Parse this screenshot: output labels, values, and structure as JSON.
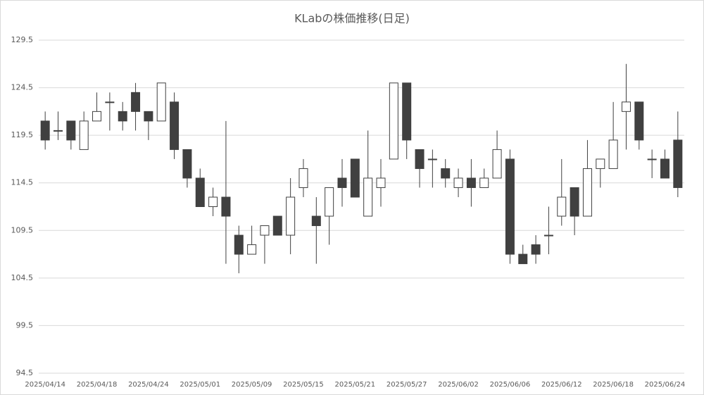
{
  "chart_data": {
    "type": "candlestick",
    "title": "KLabの株価推移(日足)",
    "categories": [
      "2025/04/14",
      null,
      null,
      null,
      "2025/04/18",
      null,
      null,
      null,
      "2025/04/24",
      null,
      null,
      null,
      "2025/05/01",
      null,
      null,
      null,
      "2025/05/09",
      null,
      null,
      null,
      "2025/05/15",
      null,
      null,
      null,
      "2025/05/21",
      null,
      null,
      null,
      "2025/05/27",
      null,
      null,
      null,
      "2025/06/02",
      null,
      null,
      null,
      "2025/06/06",
      null,
      null,
      null,
      "2025/06/12",
      null,
      null,
      null,
      "2025/06/18",
      null,
      null,
      null,
      "2025/06/24",
      null
    ],
    "open": [
      121,
      120,
      121,
      118,
      121,
      123,
      122,
      124,
      122,
      121,
      123,
      118,
      115,
      112,
      113,
      109,
      107,
      109,
      111,
      109,
      114,
      111,
      111,
      115,
      117,
      111,
      114,
      117,
      125,
      118,
      117,
      116,
      114,
      115,
      114,
      115,
      117,
      107,
      108,
      109,
      111,
      114,
      111,
      116,
      116,
      122,
      123,
      117,
      117,
      119
    ],
    "high": [
      122,
      122,
      121,
      122,
      124,
      124,
      123,
      125,
      122,
      125,
      124,
      118,
      116,
      114,
      121,
      110,
      110,
      110,
      111,
      115,
      117,
      113,
      114,
      117,
      117,
      120,
      117,
      125,
      125,
      118,
      118,
      117,
      116,
      117,
      116,
      120,
      118,
      108,
      109,
      112,
      117,
      114,
      119,
      117,
      123,
      127,
      123,
      118,
      118,
      122
    ],
    "low": [
      118,
      119,
      118,
      118,
      121,
      120,
      120,
      120,
      119,
      121,
      117,
      114,
      112,
      111,
      106,
      105,
      107,
      106,
      109,
      107,
      113,
      106,
      108,
      112,
      113,
      111,
      112,
      117,
      117,
      114,
      114,
      114,
      113,
      112,
      114,
      115,
      106,
      106,
      106,
      107,
      110,
      109,
      111,
      114,
      116,
      118,
      118,
      115,
      115,
      113
    ],
    "close": [
      119,
      120,
      119,
      121,
      122,
      123,
      121,
      122,
      121,
      125,
      118,
      115,
      112,
      113,
      111,
      107,
      108,
      110,
      109,
      113,
      116,
      110,
      114,
      114,
      113,
      115,
      115,
      125,
      119,
      116,
      117,
      115,
      115,
      114,
      115,
      118,
      107,
      106,
      107,
      109,
      113,
      111,
      116,
      117,
      119,
      123,
      119,
      117,
      115,
      114
    ],
    "up_color": "#ffffff",
    "down_color": "#404040",
    "line_color": "#404040",
    "ylim": [
      94.5,
      129.5
    ],
    "yticks": [
      94.5,
      99.5,
      104.5,
      109.5,
      114.5,
      119.5,
      124.5,
      129.5
    ],
    "grid": true
  }
}
